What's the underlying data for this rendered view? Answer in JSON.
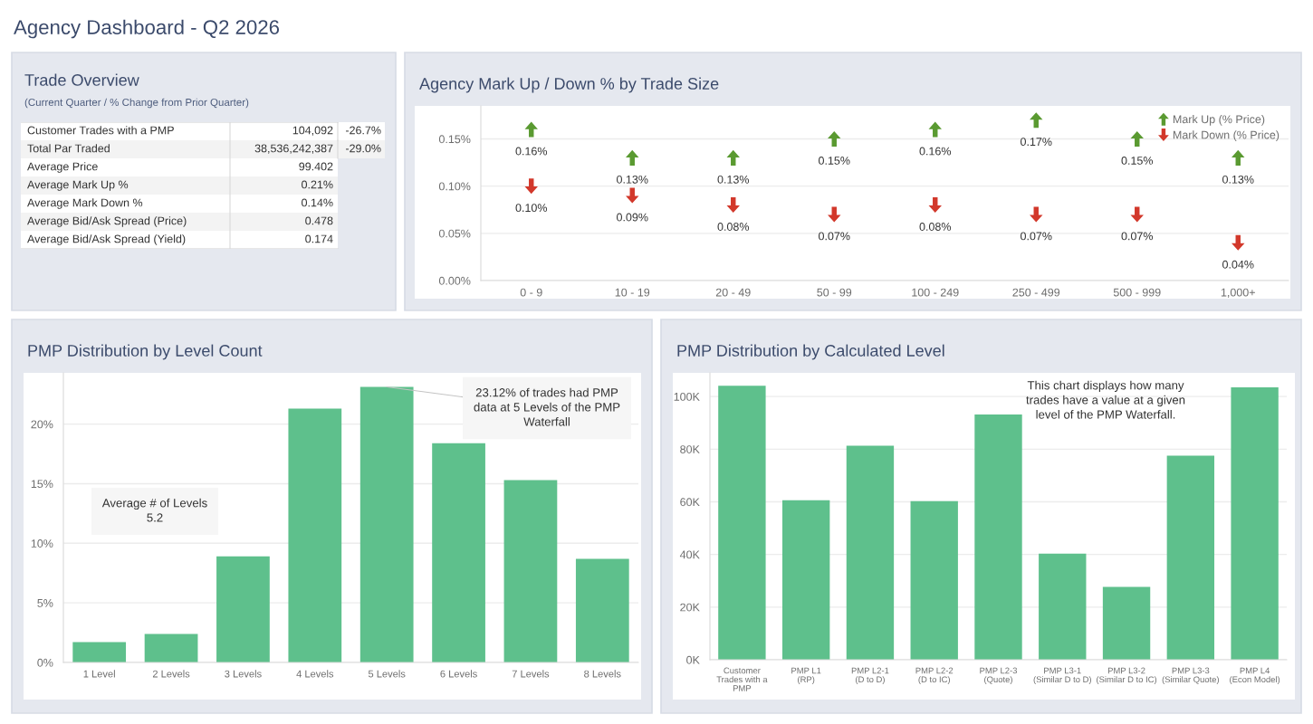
{
  "chart_data": [
    {
      "type": "other",
      "title": "Agency Dashboard - Q2 2026"
    },
    {
      "type": "other",
      "title": "Trade Overview",
      "subtitle": "(Current Quarter / % Change from Prior Quarter)",
      "categories": [
        "Customer Trades with a PMP",
        "Total Par Traded",
        "Average Price",
        "Average Mark Up %",
        "Average Mark Down %",
        "Average Bid/Ask Spread (Price)",
        "Average Bid/Ask Spread (Yield)"
      ],
      "series": [
        {
          "colors": [
            "#ffffff",
            "#f3f3f3",
            "#ffffff",
            "#f3f3f3",
            "#ffffff",
            "#f3f3f3",
            "#ffffff"
          ],
          "values": [
            104092,
            38536242387,
            99.402,
            0.21,
            0.14,
            0.478,
            0.174
          ],
          "value_labels": [
            "104,092",
            "38,536,242,387",
            "99.402",
            "0.21%",
            "0.14%",
            "0.478",
            "0.174"
          ]
        },
        {
          "colors": [
            "#ffffff",
            "#f3f3f3",
            null,
            null,
            null,
            null,
            null
          ],
          "values": [
            -26.7,
            -29.0,
            null,
            null,
            null,
            null,
            null
          ],
          "value_labels": [
            "-26.7%",
            "-29.0%",
            null,
            null,
            null,
            null,
            null
          ]
        }
      ]
    },
    {
      "type": "scatter",
      "title": "Agency Mark Up / Down % by Trade Size",
      "categories": [
        "0 - 9",
        "10 - 19",
        "20 - 49",
        "50 - 99",
        "100 - 249",
        "250 - 499",
        "500 - 999",
        "1,000+"
      ],
      "series": [
        {
          "name": "Mark Up (% Price)",
          "color": "#5a9a31",
          "values": [
            0.16,
            0.13,
            0.13,
            0.15,
            0.16,
            0.17,
            0.15,
            0.13
          ],
          "value_labels": [
            "0.16%",
            "0.13%",
            "0.13%",
            "0.15%",
            "0.16%",
            "0.17%",
            "0.15%",
            "0.13%"
          ]
        },
        {
          "name": "Mark Down (% Price)",
          "color": "#d2382b",
          "values": [
            0.1,
            0.09,
            0.08,
            0.07,
            0.08,
            0.07,
            0.07,
            0.04
          ],
          "value_labels": [
            "0.10%",
            "0.09%",
            "0.08%",
            "0.07%",
            "0.08%",
            "0.07%",
            "0.07%",
            "0.04%"
          ]
        }
      ],
      "ylim": [
        0,
        0.185
      ],
      "yticks": [
        {
          "value": 0,
          "label": "0.00%"
        },
        {
          "value": 0.05,
          "label": "0.05%"
        },
        {
          "value": 0.1,
          "label": "0.10%"
        },
        {
          "value": 0.15,
          "label": "0.15%"
        }
      ],
      "grid": "y",
      "legend": "top right"
    },
    {
      "type": "bar",
      "title": "PMP Distribution by Level Count",
      "categories": [
        "1 Level",
        "2 Levels",
        "3 Levels",
        "4 Levels",
        "5 Levels",
        "6 Levels",
        "7 Levels",
        "8 Levels"
      ],
      "values": [
        1.7,
        2.4,
        8.9,
        21.3,
        23.12,
        18.4,
        15.3,
        8.7
      ],
      "color": "#5ec08c",
      "ylim": [
        0,
        24.3
      ],
      "yticks": [
        {
          "value": 0,
          "label": "0%"
        },
        {
          "value": 5,
          "label": "5%"
        },
        {
          "value": 10,
          "label": "10%"
        },
        {
          "value": 15,
          "label": "15%"
        },
        {
          "value": 20,
          "label": "20%"
        }
      ],
      "grid": "y",
      "annotations": [
        {
          "text": "23.12% of trades had PMP\ndata at 5 Levels of the PMP\nWaterfall",
          "x": "5 Levels",
          "y": 23.12
        },
        "Average # of Levels\n5.2"
      ]
    },
    {
      "type": "bar",
      "title": "PMP Distribution by Calculated Level",
      "categories": [
        "Customer\nTrades with a\nPMP",
        "PMP L1\n(RP)",
        "PMP L2-1\n(D to D)",
        "PMP L2-2\n(D to IC)",
        "PMP L2-3\n(Quote)",
        "PMP L3-1\n(Similar D to D)",
        "PMP L3-2\n(Similar D to IC)",
        "PMP L3-3\n(Similar Quote)",
        "PMP L4\n(Econ Model)"
      ],
      "values": [
        104100,
        60600,
        81300,
        60300,
        93200,
        40300,
        27700,
        77500,
        103500
      ],
      "color": "#5ec08c",
      "ylim": [
        0,
        109000
      ],
      "yticks": [
        {
          "value": 0,
          "label": "0K"
        },
        {
          "value": 20000,
          "label": "20K"
        },
        {
          "value": 40000,
          "label": "40K"
        },
        {
          "value": 60000,
          "label": "60K"
        },
        {
          "value": 80000,
          "label": "80K"
        },
        {
          "value": 100000,
          "label": "100K"
        }
      ],
      "grid": "y",
      "annotations": [
        "This chart displays how many\ntrades have a value at a given\nlevel of the PMP Waterfall."
      ]
    }
  ]
}
